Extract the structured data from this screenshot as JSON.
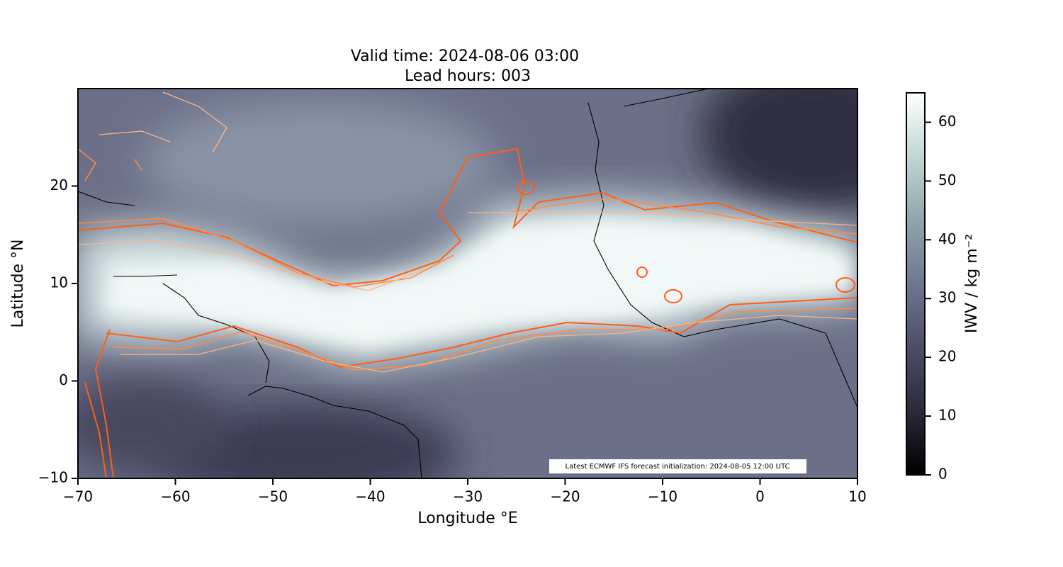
{
  "chart_data": {
    "type": "map",
    "title": [
      "Valid time: 2024-08-06 03:00",
      "Lead hours: 003"
    ],
    "x_label": "Longitude °E",
    "y_label": "Latitude °N",
    "xlim": [
      -70,
      10
    ],
    "xticks": [
      {
        "value": -70,
        "label": "−70"
      },
      {
        "value": -60,
        "label": "−60"
      },
      {
        "value": -50,
        "label": "−50"
      },
      {
        "value": -40,
        "label": "−40"
      },
      {
        "value": -30,
        "label": "−30"
      },
      {
        "value": -20,
        "label": "−20"
      },
      {
        "value": -10,
        "label": "−10"
      },
      0,
      10
    ],
    "ylim": [
      -10,
      30
    ],
    "yticks": [
      {
        "value": -10,
        "label": "−10"
      },
      0,
      10,
      20
    ],
    "annotation": "Latest ECMWF IFS forecast initialization: 2024-08-05 12:00 UTC",
    "colorbar": {
      "label": "IWV / kg m⁻²",
      "lim": [
        0,
        65
      ],
      "ticks": [
        0,
        10,
        20,
        30,
        40,
        50,
        60
      ],
      "colors": [
        "#000000",
        "#2a2a3a",
        "#4d4d68",
        "#6e7690",
        "#90a5ab",
        "#c1d6d4",
        "#ffffff"
      ]
    }
  }
}
